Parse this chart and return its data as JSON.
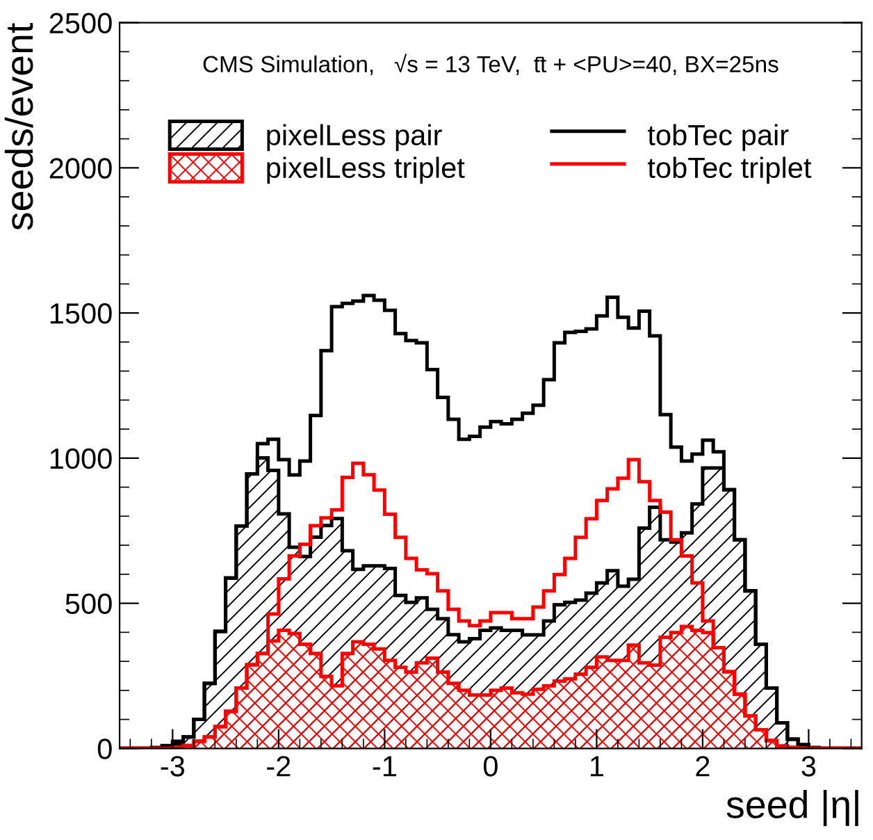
{
  "chart_data": {
    "type": "histogram",
    "annotations": [
      "CMS Simulation,   √s = 13 TeV,  t̄t + <PU>=40, BX=25ns"
    ],
    "xlabel": "seed |η|",
    "ylabel": "seeds/event",
    "bins": [
      -3.5,
      -3.4,
      -3.3,
      -3.2,
      -3.1,
      -3.0,
      -2.9,
      -2.8,
      -2.7,
      -2.6,
      -2.5,
      -2.4,
      -2.3,
      -2.2,
      -2.1,
      -2.0,
      -1.9,
      -1.8,
      -1.7,
      -1.6,
      -1.5,
      -1.4,
      -1.3,
      -1.2,
      -1.1,
      -1.0,
      -0.9,
      -0.8,
      -0.7,
      -0.6,
      -0.5,
      -0.4,
      -0.3,
      -0.2,
      -0.1,
      0.0,
      0.1,
      0.2,
      0.3,
      0.4,
      0.5,
      0.6,
      0.7,
      0.8,
      0.9,
      1.0,
      1.1,
      1.2,
      1.3,
      1.4,
      1.5,
      1.6,
      1.7,
      1.8,
      1.9,
      2.0,
      2.1,
      2.2,
      2.3,
      2.4,
      2.5,
      2.6,
      2.7,
      2.8,
      2.9,
      3.0,
      3.1,
      3.2,
      3.3,
      3.4,
      3.5
    ],
    "series": [
      {
        "name": "pixelLess pair",
        "color": "#000000",
        "values": [
          0,
          0,
          0,
          0,
          0,
          15,
          40,
          100,
          224,
          403,
          587,
          766,
          946,
          1001,
          958,
          808,
          693,
          661,
          728,
          768,
          792,
          681,
          617,
          629,
          629,
          620,
          527,
          503,
          519,
          479,
          447,
          392,
          367,
          378,
          407,
          415,
          407,
          407,
          391,
          391,
          439,
          495,
          503,
          511,
          535,
          570,
          612,
          559,
          583,
          759,
          831,
          719,
          711,
          743,
          842,
          966,
          966,
          891,
          719,
          543,
          359,
          208,
          88,
          32,
          13,
          0,
          0,
          0,
          0,
          0
        ]
      },
      {
        "name": "pixelLess triplet",
        "color": "#ff0000",
        "values": [
          0,
          0,
          0,
          0,
          0,
          3,
          10,
          25,
          40,
          75,
          128,
          208,
          288,
          327,
          370,
          407,
          396,
          359,
          327,
          248,
          216,
          327,
          367,
          359,
          343,
          303,
          279,
          263,
          295,
          311,
          263,
          224,
          200,
          184,
          184,
          200,
          208,
          192,
          187,
          204,
          216,
          232,
          240,
          256,
          279,
          315,
          303,
          303,
          356,
          295,
          287,
          383,
          399,
          420,
          407,
          399,
          347,
          264,
          187,
          112,
          64,
          27,
          8,
          3,
          0,
          0,
          0,
          0,
          0,
          0
        ]
      },
      {
        "name": "tobTec pair",
        "color": "#000000",
        "values": [
          0,
          0,
          0,
          3,
          10,
          25,
          40,
          100,
          224,
          403,
          587,
          766,
          946,
          1050,
          1065,
          995,
          942,
          990,
          1147,
          1370,
          1522,
          1533,
          1541,
          1560,
          1544,
          1509,
          1429,
          1405,
          1397,
          1305,
          1209,
          1134,
          1065,
          1075,
          1107,
          1126,
          1118,
          1134,
          1155,
          1182,
          1270,
          1397,
          1433,
          1437,
          1445,
          1490,
          1554,
          1485,
          1448,
          1506,
          1421,
          1150,
          1038,
          990,
          1014,
          1062,
          1022,
          891,
          719,
          543,
          359,
          208,
          88,
          32,
          13,
          3,
          0,
          0,
          0,
          0
        ]
      },
      {
        "name": "tobTec triplet",
        "color": "#ff0000",
        "values": [
          0,
          0,
          0,
          0,
          0,
          3,
          10,
          25,
          40,
          75,
          128,
          208,
          288,
          327,
          463,
          584,
          663,
          703,
          767,
          794,
          822,
          934,
          982,
          943,
          890,
          807,
          727,
          655,
          615,
          602,
          543,
          479,
          439,
          423,
          439,
          468,
          468,
          447,
          447,
          487,
          543,
          599,
          655,
          727,
          791,
          854,
          894,
          931,
          995,
          919,
          854,
          814,
          719,
          663,
          570,
          439,
          347,
          264,
          187,
          112,
          64,
          27,
          8,
          3,
          0,
          0,
          0,
          0,
          0,
          0
        ]
      }
    ],
    "xlim": [
      -3.5,
      3.5
    ],
    "xticks": [
      -3,
      -2,
      -1,
      0,
      1,
      2,
      3
    ],
    "ylim": [
      0,
      2500
    ],
    "yticks": [
      0,
      500,
      1000,
      1500,
      2000,
      2500
    ],
    "grid": false,
    "legend": "top"
  }
}
